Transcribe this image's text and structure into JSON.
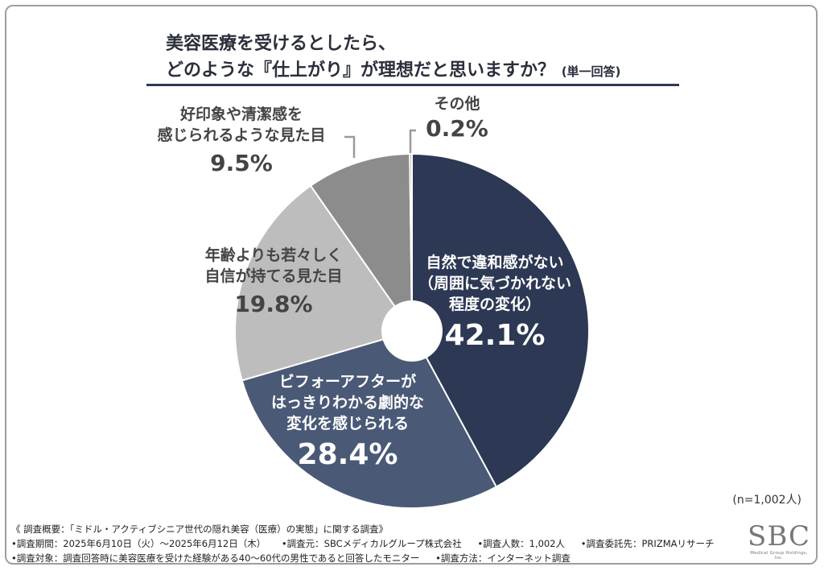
{
  "title": {
    "line1": "美容医療を受けるとしたら、",
    "line2": "どのような『仕上がり』が理想だと思いますか？",
    "note": "(単一回答)"
  },
  "chart_data": {
    "type": "pie",
    "style": "donut",
    "start": "top, clockwise",
    "slices": [
      {
        "lines": [
          "自然で違和感がない",
          "（周囲に気づかれない",
          "程度の変化）"
        ],
        "value": 42.1,
        "label": "42.1%",
        "color": "#2c3854",
        "text_color": "#ffffff"
      },
      {
        "lines": [
          "ビフォーアフターが",
          "はっきりわかる劇的な",
          "変化を感じられる"
        ],
        "value": 28.4,
        "label": "28.4%",
        "color": "#4a5976",
        "text_color": "#ffffff"
      },
      {
        "lines": [
          "年齢よりも若々しく",
          "自信が持てる見た目"
        ],
        "value": 19.8,
        "label": "19.8%",
        "color": "#bdbdbd",
        "text_color": "#444444"
      },
      {
        "lines": [
          "好印象や清潔感を",
          "感じられるような見た目"
        ],
        "value": 9.5,
        "label": "9.5%",
        "color": "#8c8c8c",
        "text_color": "#444444"
      },
      {
        "lines": [
          "その他"
        ],
        "value": 0.2,
        "label": "0.2%",
        "color": "#9e9e9e",
        "text_color": "#444444"
      }
    ]
  },
  "sample_size": "(n=1,002人)",
  "footer": {
    "line1": "《 調査概要：「ミドル・アクティブシニア世代の隠れ美容（医療）の実態」に関する調査》",
    "line2": [
      "•調査期間：2025年6月10日（火）〜2025年6月12日（木）",
      "•調査元：SBCメディカルグループ株式会社",
      "•調査人数：1,002人",
      "•調査委託先：PRIZMAリサーチ"
    ],
    "line3": [
      "•調査対象：調査回答時に美容医療を受けた経験がある40〜60代の男性であると回答したモニター",
      "•調査方法：インターネット調査"
    ]
  },
  "logo": {
    "mark": "SBC",
    "sub": "Medical Group Holdings, Inc."
  }
}
